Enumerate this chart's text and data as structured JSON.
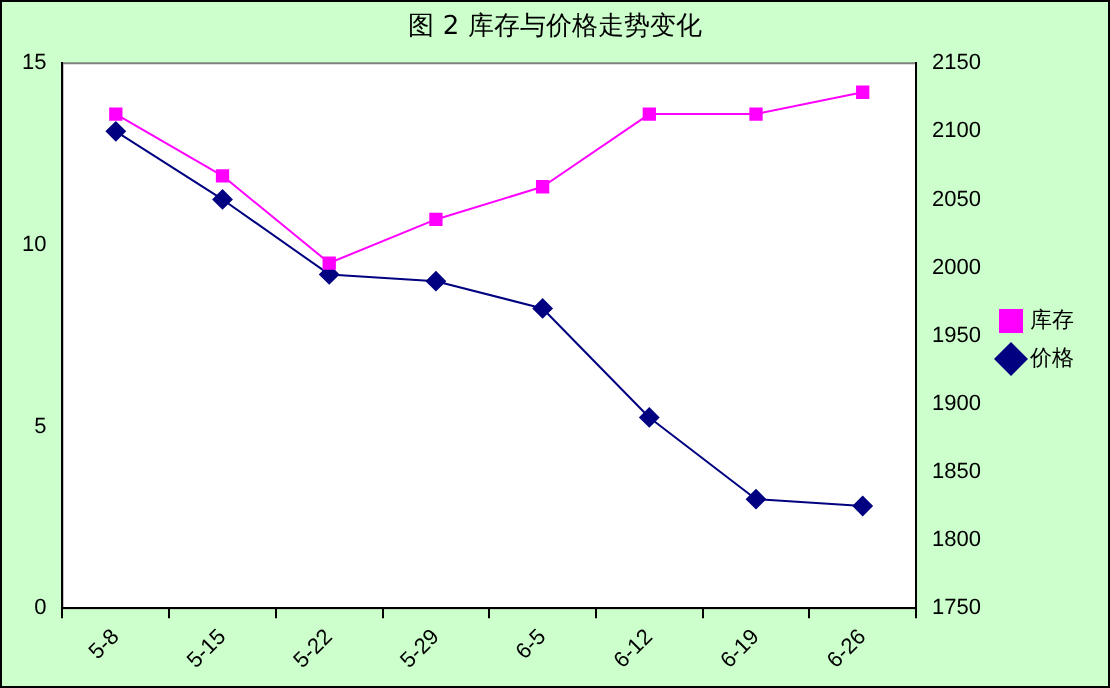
{
  "chart_data": {
    "type": "line",
    "title": "图 2 库存与价格走势变化",
    "categories": [
      "5-8",
      "5-15",
      "5-22",
      "5-29",
      "6-5",
      "6-12",
      "6-19",
      "6-26"
    ],
    "series": [
      {
        "name": "库存",
        "color": "#ff00ff",
        "marker": "square",
        "values": [
          13.6,
          11.9,
          9.5,
          10.7,
          11.6,
          13.6,
          13.6,
          14.2
        ]
      },
      {
        "name": "价格",
        "color": "#000080",
        "marker": "diamond",
        "axis": "y2",
        "values": [
          2100,
          2050,
          1995,
          1990,
          1970,
          1890,
          1830,
          1825
        ]
      }
    ],
    "ylim": [
      0,
      15
    ],
    "yticks": [
      0,
      5,
      10,
      15
    ],
    "y2lim": [
      1750,
      2150
    ],
    "y2ticks": [
      1750,
      1800,
      1850,
      1900,
      1950,
      2000,
      2050,
      2100,
      2150
    ],
    "grid": false,
    "legend": "right",
    "line_style": "solid"
  }
}
